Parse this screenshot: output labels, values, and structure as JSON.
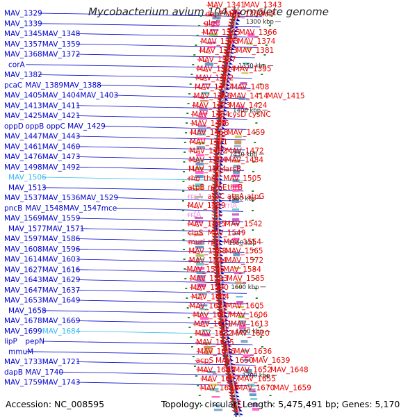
{
  "title": "Mycobacterium avium 104, complete genome",
  "footer": {
    "accession": "Accession: NC_008595",
    "summary": "Topology: circular; Length: 5,475,491 bp; Genes: 5,170"
  },
  "colors": {
    "forward": "#0000cc",
    "reverse": "#ee0000",
    "rna_forward": "#33bbee",
    "rna_reverse": "#ee99dd",
    "backbone": "#888888",
    "tick": "#228822"
  },
  "scale_marks": [
    {
      "label": "1300 kbp",
      "kbp": 1300
    },
    {
      "label": "1350 kbp",
      "kbp": 1350
    },
    {
      "label": "1400 kbp",
      "kbp": 1400
    },
    {
      "label": "1450 kbp",
      "kbp": 1450
    },
    {
      "label": "1500 kbp",
      "kbp": 1500
    },
    {
      "label": "1550 kbp",
      "kbp": 1550
    },
    {
      "label": "1600 kbp",
      "kbp": 1600
    },
    {
      "label": "1650 kbp",
      "kbp": 1650
    },
    {
      "label": "1700 kbp",
      "kbp": 1700
    }
  ],
  "forward_labels": [
    {
      "text": "MAV_1329",
      "row": 0,
      "col": 0
    },
    {
      "text": "MAV_1339",
      "row": 1,
      "col": 0
    },
    {
      "text": "MAV_1345",
      "row": 2,
      "col": 0
    },
    {
      "text": "MAV_1348",
      "row": 2,
      "col": 1
    },
    {
      "text": "MAV_1357",
      "row": 3,
      "col": 0
    },
    {
      "text": "MAV_1359",
      "row": 3,
      "col": 1
    },
    {
      "text": "MAV_1368",
      "row": 4,
      "col": 0
    },
    {
      "text": "MAV_1372",
      "row": 4,
      "col": 1
    },
    {
      "text": "corA",
      "row": 5,
      "col": 1
    },
    {
      "text": "MAV_1382",
      "row": 6,
      "col": 0
    },
    {
      "text": "pcaC",
      "row": 7,
      "col": 0
    },
    {
      "text": "MAV_1389",
      "row": 7,
      "col": 1
    },
    {
      "text": "MAV_1388",
      "row": 7,
      "col": 2
    },
    {
      "text": "MAV_1405",
      "row": 8,
      "col": 0
    },
    {
      "text": "MAV_1404",
      "row": 8,
      "col": 1
    },
    {
      "text": "MAV_1403",
      "row": 8,
      "col": 2
    },
    {
      "text": "MAV_1413",
      "row": 9,
      "col": 0
    },
    {
      "text": "MAV_1411",
      "row": 9,
      "col": 1
    },
    {
      "text": "MAV_1425",
      "row": 10,
      "col": 0
    },
    {
      "text": "MAV_1421",
      "row": 10,
      "col": 1
    },
    {
      "text": "oppD",
      "row": 11,
      "col": 0
    },
    {
      "text": "oppB",
      "row": 11,
      "col": 1
    },
    {
      "text": "oppC",
      "row": 11,
      "col": 2
    },
    {
      "text": "MAV_1429",
      "row": 11,
      "col": 3
    },
    {
      "text": "MAV_1447",
      "row": 12,
      "col": 0
    },
    {
      "text": "MAV_1443",
      "row": 12,
      "col": 1
    },
    {
      "text": "MAV_1461",
      "row": 13,
      "col": 0
    },
    {
      "text": "MAV_1460",
      "row": 13,
      "col": 1
    },
    {
      "text": "MAV_1476",
      "row": 14,
      "col": 0
    },
    {
      "text": "MAV_1473",
      "row": 14,
      "col": 1
    },
    {
      "text": "MAV_1498",
      "row": 15,
      "col": 0
    },
    {
      "text": "MAV_1492",
      "row": 15,
      "col": 1
    },
    {
      "text": "MAV_1506",
      "row": 16,
      "col": 2,
      "rna": true
    },
    {
      "text": "MAV_1513",
      "row": 17,
      "col": 2
    },
    {
      "text": "MAV_1537",
      "row": 18,
      "col": 0
    },
    {
      "text": "MAV_1536",
      "row": 18,
      "col": 1
    },
    {
      "text": "MAV_1529",
      "row": 18,
      "col": 2
    },
    {
      "text": "pncB",
      "row": 19,
      "col": 0
    },
    {
      "text": "MAV_1548",
      "row": 19,
      "col": 1
    },
    {
      "text": "MAV_1547",
      "row": 19,
      "col": 2
    },
    {
      "text": "mce",
      "row": 19,
      "col": 3
    },
    {
      "text": "MAV_1569",
      "row": 20,
      "col": 0
    },
    {
      "text": "MAV_1559",
      "row": 20,
      "col": 1
    },
    {
      "text": "MAV_1577",
      "row": 21,
      "col": 1
    },
    {
      "text": "MAV_1571",
      "row": 21,
      "col": 2
    },
    {
      "text": "MAV_1597",
      "row": 22,
      "col": 0
    },
    {
      "text": "MAV_1586",
      "row": 22,
      "col": 1
    },
    {
      "text": "MAV_1608",
      "row": 23,
      "col": 0
    },
    {
      "text": "MAV_1596",
      "row": 23,
      "col": 1
    },
    {
      "text": "MAV_1614",
      "row": 24,
      "col": 0
    },
    {
      "text": "MAV_1603",
      "row": 24,
      "col": 1
    },
    {
      "text": "MAV_1627",
      "row": 25,
      "col": 0
    },
    {
      "text": "MAV_1616",
      "row": 25,
      "col": 1
    },
    {
      "text": "MAV_1643",
      "row": 26,
      "col": 0
    },
    {
      "text": "MAV_1629",
      "row": 26,
      "col": 1
    },
    {
      "text": "MAV_1647",
      "row": 27,
      "col": 0
    },
    {
      "text": "MAV_1637",
      "row": 27,
      "col": 1
    },
    {
      "text": "MAV_1653",
      "row": 28,
      "col": 0
    },
    {
      "text": "MAV_1649",
      "row": 28,
      "col": 1
    },
    {
      "text": "MAV_1658",
      "row": 29,
      "col": 1
    },
    {
      "text": "MAV_1678",
      "row": 30,
      "col": 0
    },
    {
      "text": "MAV_1669",
      "row": 30,
      "col": 1
    },
    {
      "text": "MAV_1699",
      "row": 31,
      "col": 0
    },
    {
      "text": "MAV_1684",
      "row": 31,
      "col": 1,
      "rna": true
    },
    {
      "text": "lipP",
      "row": 32,
      "col": 0
    },
    {
      "text": "pepN",
      "row": 32,
      "col": 1
    },
    {
      "text": "mmuM",
      "row": 33,
      "col": 1
    },
    {
      "text": "MAV_1733",
      "row": 34,
      "col": 0
    },
    {
      "text": "MAV_1721",
      "row": 34,
      "col": 1
    },
    {
      "text": "dapB",
      "row": 35,
      "col": 0
    },
    {
      "text": "MAV_1740",
      "row": 35,
      "col": 1
    },
    {
      "text": "MAV_1759",
      "row": 36,
      "col": 0
    },
    {
      "text": "MAV_1743",
      "row": 36,
      "col": 1
    }
  ],
  "reverse_labels": [
    {
      "text": "MAV_1341",
      "row": 0,
      "col": 1
    },
    {
      "text": "MAV_1343",
      "row": 0,
      "col": 2
    },
    {
      "text": "dapE",
      "row": 1,
      "col": 1
    },
    {
      "text": "MAV_1350",
      "row": 1,
      "col": 2
    },
    {
      "text": "folP",
      "row": 1,
      "col": 3
    },
    {
      "text": "glgC",
      "row": 2,
      "col": 2
    },
    {
      "text": "MAV_1365",
      "row": 3,
      "col": 2
    },
    {
      "text": "MAV_1366",
      "row": 3,
      "col": 3
    },
    {
      "text": "MAV_1373",
      "row": 4,
      "col": 2
    },
    {
      "text": "MAV_1374",
      "row": 4,
      "col": 3
    },
    {
      "text": "MAV_1383",
      "row": 5,
      "col": 1
    },
    {
      "text": "MAV_1381",
      "row": 5,
      "col": 2
    },
    {
      "text": "MAV_1387",
      "row": 6,
      "col": 1
    },
    {
      "text": "MAV_1394",
      "row": 7,
      "col": 2
    },
    {
      "text": "MAV_1395",
      "row": 7,
      "col": 3
    },
    {
      "text": "MAV_1402",
      "row": 8,
      "col": 1
    },
    {
      "text": "MAV_1407",
      "row": 9,
      "col": 2
    },
    {
      "text": "MAV_1408",
      "row": 9,
      "col": 3
    },
    {
      "text": "MAV_1416",
      "row": 10,
      "col": 1
    },
    {
      "text": "MAV_1414",
      "row": 10,
      "col": 2
    },
    {
      "text": "MAV_1415",
      "row": 10,
      "col": 3
    },
    {
      "text": "MAV_1423",
      "row": 11,
      "col": 2
    },
    {
      "text": "MAV_1424",
      "row": 11,
      "col": 3
    },
    {
      "text": "MAV_1434",
      "row": 12,
      "col": 2
    },
    {
      "text": "cysD",
      "row": 12,
      "col": 3
    },
    {
      "text": "cysNC",
      "row": 12,
      "col": 4
    },
    {
      "text": "MAV_1446",
      "row": 13,
      "col": 2
    },
    {
      "text": "MAV_1458",
      "row": 14,
      "col": 2
    },
    {
      "text": "MAV_1459",
      "row": 14,
      "col": 3
    },
    {
      "text": "MAV_1471",
      "row": 15,
      "col": 2
    },
    {
      "text": "MAV_1482",
      "row": 16,
      "col": 2
    },
    {
      "text": "MAV_1472",
      "row": 16,
      "col": 3
    },
    {
      "text": "MAV_1494",
      "row": 17,
      "col": 2
    },
    {
      "text": "MAV_1484",
      "row": 17,
      "col": 3
    },
    {
      "text": "MAV_1504",
      "row": 18,
      "col": 2
    },
    {
      "text": "arsB",
      "row": 18,
      "col": 3
    },
    {
      "text": "rho",
      "row": 19,
      "col": 1
    },
    {
      "text": "thrC",
      "row": 19,
      "col": 2
    },
    {
      "text": "MAV_1505",
      "row": 19,
      "col": 3
    },
    {
      "text": "atpB",
      "row": 20,
      "col": 2
    },
    {
      "text": "rpmE",
      "row": 20,
      "col": 3
    },
    {
      "text": "thrB",
      "row": 20,
      "col": 4
    },
    {
      "text": "rrsA",
      "row": 21,
      "col": 1,
      "rna": true
    },
    {
      "text": "atpC",
      "row": 21,
      "col": 2
    },
    {
      "text": "atpA",
      "row": 21,
      "col": 3
    },
    {
      "text": "atpG",
      "row": 21,
      "col": 4
    },
    {
      "text": "MAV_1539",
      "row": 22,
      "col": 2
    },
    {
      "text": "rrlA",
      "row": 22,
      "col": 3,
      "rna": true
    },
    {
      "text": "rrfA",
      "row": 23,
      "col": 3,
      "rna": true
    },
    {
      "text": "MAV_1545",
      "row": 24,
      "col": 2
    },
    {
      "text": "MAV_1542",
      "row": 24,
      "col": 3
    },
    {
      "text": "clpS",
      "row": 25,
      "col": 1
    },
    {
      "text": "MAV_1549",
      "row": 25,
      "col": 3
    },
    {
      "text": "murI",
      "row": 26,
      "col": 1
    },
    {
      "text": "rph",
      "row": 26,
      "col": 2
    },
    {
      "text": "MAV_1554",
      "row": 26,
      "col": 3
    },
    {
      "text": "MAV_1568",
      "row": 27,
      "col": 1
    },
    {
      "text": "MAV_1565",
      "row": 27,
      "col": 3
    },
    {
      "text": "MAV_1574",
      "row": 28,
      "col": 1
    },
    {
      "text": "MAV_1572",
      "row": 28,
      "col": 3
    },
    {
      "text": "MAV_1595",
      "row": 29,
      "col": 0
    },
    {
      "text": "MAV_1584",
      "row": 29,
      "col": 1
    },
    {
      "text": "MAV_1593",
      "row": 30,
      "col": 1
    },
    {
      "text": "MAV_1585",
      "row": 30,
      "col": 2
    },
    {
      "text": "MAV_1590",
      "row": 31,
      "col": 3
    },
    {
      "text": "MAV_1604",
      "row": 32,
      "col": 1
    },
    {
      "text": "MAV_1624",
      "row": 33,
      "col": 0
    },
    {
      "text": "MAV_1605",
      "row": 33,
      "col": 2
    },
    {
      "text": "MAV_1617",
      "row": 34,
      "col": 1
    },
    {
      "text": "MAV_1606",
      "row": 34,
      "col": 3
    },
    {
      "text": "MAV_1621",
      "row": 35,
      "col": 1
    },
    {
      "text": "MAV_1613",
      "row": 35,
      "col": 3
    },
    {
      "text": "MAV_1632",
      "row": 36,
      "col": 1
    },
    {
      "text": "MAV_1620",
      "row": 36,
      "col": 3
    },
    {
      "text": "MAV_1635",
      "row": 37,
      "col": 2
    },
    {
      "text": "MAV_1646",
      "row": 38,
      "col": 1
    },
    {
      "text": "MAV_1636",
      "row": 38,
      "col": 2
    },
    {
      "text": "acpS",
      "row": 39,
      "col": 0
    },
    {
      "text": "MAV_1650",
      "row": 39,
      "col": 1
    },
    {
      "text": "MAV_1639",
      "row": 39,
      "col": 3
    },
    {
      "text": "MAV_1665",
      "row": 40,
      "col": 0
    },
    {
      "text": "MAV_1652",
      "row": 40,
      "col": 1
    },
    {
      "text": "MAV_1648",
      "row": 40,
      "col": 3
    },
    {
      "text": "MAV_1667",
      "row": 41,
      "col": 1
    },
    {
      "text": "MAV_1655",
      "row": 41,
      "col": 2
    },
    {
      "text": "MAV_1683",
      "row": 42,
      "col": 0
    },
    {
      "text": "MAV_1670",
      "row": 42,
      "col": 1
    },
    {
      "text": "MAV_1659",
      "row": 42,
      "col": 3
    }
  ]
}
